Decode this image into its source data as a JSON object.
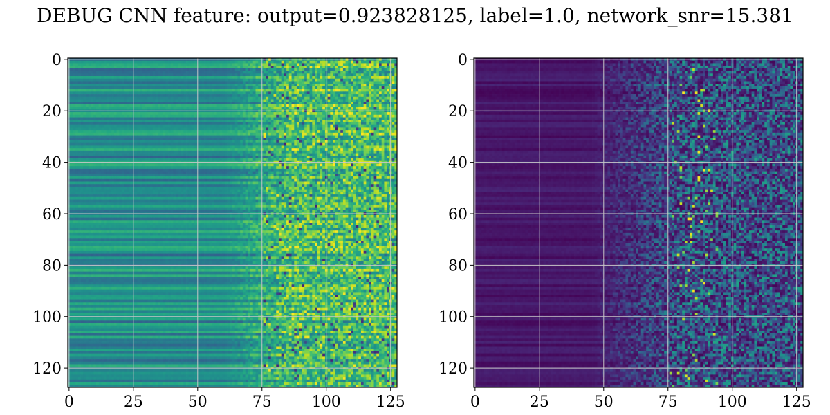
{
  "title": "DEBUG CNN feature: output=0.923828125, label=1.0, network_snr=15.381",
  "colormap": "viridis",
  "colors": {
    "grid": "#c8c8c8",
    "axes": "#000000"
  },
  "chart_data": [
    {
      "type": "heatmap",
      "rows": 128,
      "cols": 128,
      "xlim": [
        0,
        128
      ],
      "ylim": [
        128,
        0
      ],
      "x_ticks": [
        0,
        25,
        50,
        75,
        100,
        125
      ],
      "y_ticks": [
        0,
        20,
        40,
        60,
        80,
        100,
        120
      ],
      "grid": true,
      "colorbar": false,
      "value_range": [
        0,
        1
      ],
      "pattern": "horizontal row-banded structure for columns 0-75 (mid teal/green values), noisy high-variance speckle for columns 75-128 with bright yellow spots around rows 0-10, 30-40, 58-68, 103"
    },
    {
      "type": "heatmap",
      "rows": 128,
      "cols": 128,
      "xlim": [
        0,
        128
      ],
      "ylim": [
        128,
        0
      ],
      "x_ticks": [
        0,
        25,
        50,
        75,
        100,
        125
      ],
      "y_ticks": [
        0,
        20,
        40,
        60,
        80,
        100,
        120
      ],
      "grid": true,
      "colorbar": false,
      "value_range": [
        0,
        1
      ],
      "pattern": "mostly dark purple with faint row bands for columns 0-50, increasingly noisy blue/teal speckle for columns 55-128, brightest yellow pixels near columns 80-90 at rows 24, 35, 72, 95"
    }
  ]
}
